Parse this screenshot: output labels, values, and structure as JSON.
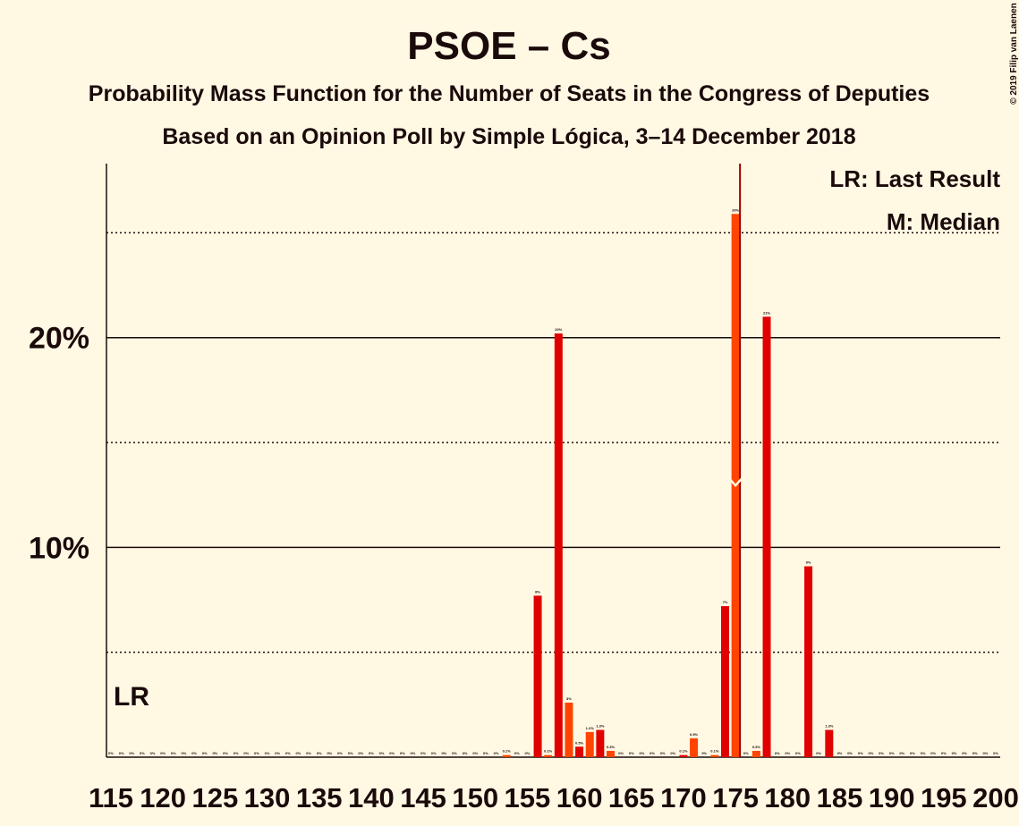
{
  "chart_data": {
    "type": "bar",
    "title": "PSOE – Cs",
    "subtitle": "Probability Mass Function for the Number of Seats in the Congress of Deputies",
    "subtitle2": "Based on an Opinion Poll by Simple Lógica, 3–14 December 2018",
    "copyright": "© 2019 Filip van Laenen",
    "legend": [
      "LR: Last Result",
      "M: Median"
    ],
    "last_result_label": "LR",
    "last_result": 115,
    "median": 175,
    "x": [
      115,
      116,
      117,
      118,
      119,
      120,
      121,
      122,
      123,
      124,
      125,
      126,
      127,
      128,
      129,
      130,
      131,
      132,
      133,
      134,
      135,
      136,
      137,
      138,
      139,
      140,
      141,
      142,
      143,
      144,
      145,
      146,
      147,
      148,
      149,
      150,
      151,
      152,
      153,
      154,
      155,
      156,
      157,
      158,
      159,
      160,
      161,
      162,
      163,
      164,
      165,
      166,
      167,
      168,
      169,
      170,
      171,
      172,
      173,
      174,
      175,
      176,
      177,
      178,
      179,
      180,
      181,
      182,
      183,
      184,
      185,
      186,
      187,
      188,
      189,
      190,
      191,
      192,
      193,
      194,
      195,
      196,
      197,
      198,
      199,
      200
    ],
    "values": [
      0,
      0,
      0,
      0,
      0,
      0,
      0,
      0,
      0,
      0,
      0,
      0,
      0,
      0,
      0,
      0,
      0,
      0,
      0,
      0,
      0,
      0,
      0,
      0,
      0,
      0,
      0,
      0,
      0,
      0,
      0,
      0,
      0,
      0,
      0,
      0,
      0,
      0,
      0.1,
      0,
      0,
      7.7,
      0.1,
      20.2,
      2.6,
      0.5,
      1.2,
      1.3,
      0.3,
      0,
      0,
      0,
      0,
      0,
      0,
      0.1,
      0.9,
      0,
      0.1,
      7.2,
      25.9,
      0,
      0.3,
      21.0,
      0,
      0,
      0,
      9.1,
      0,
      1.3,
      0,
      0,
      0,
      0,
      0,
      0,
      0,
      0,
      0,
      0,
      0,
      0,
      0,
      0,
      0,
      0
    ],
    "value_labels": [
      "0%",
      "0%",
      "0%",
      "0%",
      "0%",
      "0%",
      "0%",
      "0%",
      "0%",
      "0%",
      "0%",
      "0%",
      "0%",
      "0%",
      "0%",
      "0%",
      "0%",
      "0%",
      "0%",
      "0%",
      "0%",
      "0%",
      "0%",
      "0%",
      "0%",
      "0%",
      "0%",
      "0%",
      "0%",
      "0%",
      "0%",
      "0%",
      "0%",
      "0%",
      "0%",
      "0%",
      "0%",
      "0%",
      "0.1%",
      "0%",
      "0%",
      "8%",
      "0.1%",
      "20%",
      "3%",
      "0.5%",
      "1.2%",
      "1.3%",
      "0.3%",
      "0%",
      "0%",
      "0%",
      "0%",
      "0%",
      "0%",
      "0.1%",
      "0.9%",
      "0%",
      "0.1%",
      "7%",
      "26%",
      "0%",
      "0.3%",
      "21%",
      "0%",
      "0%",
      "0%",
      "9%",
      "0%",
      "1.3%",
      "0%",
      "0%",
      "0%",
      "0%",
      "0%",
      "0%",
      "0%",
      "0%",
      "0%",
      "0%",
      "0%",
      "0%",
      "0%",
      "0%",
      "0%",
      "0%"
    ],
    "bar_colors": [
      "#ff4500",
      "#e00000"
    ],
    "xlim": [
      115,
      200
    ],
    "xticks": [
      115,
      120,
      125,
      130,
      135,
      140,
      145,
      150,
      155,
      160,
      165,
      170,
      175,
      180,
      185,
      190,
      195,
      200
    ],
    "ylim": [
      0,
      28.3
    ],
    "yticks": [
      {
        "value": 10,
        "label": "10%"
      },
      {
        "value": 20,
        "label": "20%"
      }
    ],
    "minor_gridlines": [
      5,
      15,
      25
    ],
    "grid": true
  }
}
